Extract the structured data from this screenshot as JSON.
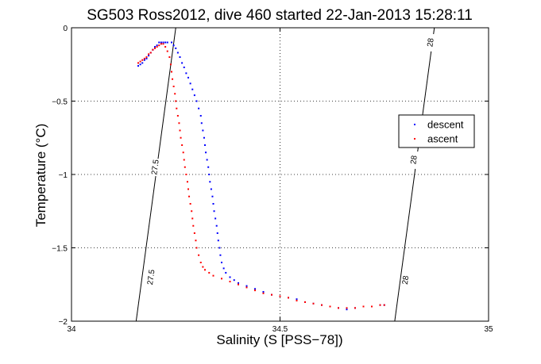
{
  "chart_data": {
    "type": "scatter",
    "title": "SG503 Ross2012, dive 460 started 22-Jan-2013 15:28:11",
    "xlabel": "Salinity (S [PSS−78])",
    "ylabel": "Temperature (°C)",
    "xlim": [
      34,
      35
    ],
    "ylim": [
      -2,
      0
    ],
    "xticks": [
      {
        "value": 34,
        "label": "34"
      },
      {
        "value": 34.5,
        "label": "34.5"
      },
      {
        "value": 35,
        "label": "35"
      }
    ],
    "yticks": [
      {
        "value": 0,
        "label": "0"
      },
      {
        "value": -0.5,
        "label": "−0.5"
      },
      {
        "value": -1,
        "label": "−1"
      },
      {
        "value": -1.5,
        "label": "−1.5"
      },
      {
        "value": -2,
        "label": "−2"
      }
    ],
    "grid": "dotted",
    "legend": {
      "position": "right",
      "entries": [
        "descent",
        "ascent"
      ]
    },
    "density_contours": [
      {
        "label": "27.5",
        "points": [
          [
            34.155,
            -2
          ],
          [
            34.25,
            0
          ]
        ],
        "label_positions": [
          [
            34.19,
            -1.7
          ],
          [
            34.2,
            -0.95
          ]
        ]
      },
      {
        "label": "28",
        "points": [
          [
            34.775,
            -2
          ],
          [
            34.87,
            0
          ]
        ],
        "label_positions": [
          [
            34.8,
            -1.72
          ],
          [
            34.82,
            -0.9
          ],
          [
            34.86,
            -0.1
          ]
        ]
      }
    ],
    "series": [
      {
        "name": "descent",
        "color": "#0000ff",
        "points": [
          [
            34.16,
            -0.26
          ],
          [
            34.165,
            -0.25
          ],
          [
            34.17,
            -0.24
          ],
          [
            34.175,
            -0.22
          ],
          [
            34.18,
            -0.21
          ],
          [
            34.185,
            -0.19
          ],
          [
            34.19,
            -0.17
          ],
          [
            34.195,
            -0.15
          ],
          [
            34.2,
            -0.13
          ],
          [
            34.205,
            -0.12
          ],
          [
            34.21,
            -0.1
          ],
          [
            34.215,
            -0.1
          ],
          [
            34.22,
            -0.1
          ],
          [
            34.225,
            -0.1
          ],
          [
            34.23,
            -0.1
          ],
          [
            34.24,
            -0.1
          ],
          [
            34.245,
            -0.12
          ],
          [
            34.25,
            -0.14
          ],
          [
            34.255,
            -0.17
          ],
          [
            34.26,
            -0.2
          ],
          [
            34.265,
            -0.24
          ],
          [
            34.27,
            -0.27
          ],
          [
            34.275,
            -0.31
          ],
          [
            34.28,
            -0.34
          ],
          [
            34.285,
            -0.38
          ],
          [
            34.29,
            -0.42
          ],
          [
            34.295,
            -0.46
          ],
          [
            34.3,
            -0.5
          ],
          [
            34.305,
            -0.55
          ],
          [
            34.31,
            -0.6
          ],
          [
            34.312,
            -0.65
          ],
          [
            34.315,
            -0.7
          ],
          [
            34.318,
            -0.75
          ],
          [
            34.32,
            -0.8
          ],
          [
            34.322,
            -0.85
          ],
          [
            34.325,
            -0.9
          ],
          [
            34.328,
            -0.95
          ],
          [
            34.33,
            -1
          ],
          [
            34.332,
            -1.05
          ],
          [
            34.335,
            -1.1
          ],
          [
            34.338,
            -1.15
          ],
          [
            34.34,
            -1.2
          ],
          [
            34.342,
            -1.25
          ],
          [
            34.345,
            -1.3
          ],
          [
            34.348,
            -1.35
          ],
          [
            34.35,
            -1.4
          ],
          [
            34.352,
            -1.45
          ],
          [
            34.355,
            -1.5
          ],
          [
            34.357,
            -1.55
          ],
          [
            34.36,
            -1.6
          ],
          [
            34.365,
            -1.64
          ],
          [
            34.37,
            -1.67
          ],
          [
            34.38,
            -1.7
          ],
          [
            34.39,
            -1.72
          ],
          [
            34.4,
            -1.74
          ],
          [
            34.42,
            -1.76
          ],
          [
            34.44,
            -1.78
          ],
          [
            34.46,
            -1.8
          ],
          [
            34.48,
            -1.82
          ],
          [
            34.5,
            -1.83
          ],
          [
            34.52,
            -1.84
          ],
          [
            34.54,
            -1.85
          ],
          [
            34.56,
            -1.87
          ],
          [
            34.58,
            -1.88
          ],
          [
            34.6,
            -1.89
          ],
          [
            34.62,
            -1.9
          ],
          [
            34.64,
            -1.91
          ],
          [
            34.66,
            -1.92
          ],
          [
            34.68,
            -1.91
          ],
          [
            34.7,
            -1.9
          ],
          [
            34.72,
            -1.9
          ],
          [
            34.74,
            -1.89
          ],
          [
            34.75,
            -1.89
          ]
        ]
      },
      {
        "name": "ascent",
        "color": "#ff0000",
        "points": [
          [
            34.16,
            -0.24
          ],
          [
            34.165,
            -0.23
          ],
          [
            34.17,
            -0.22
          ],
          [
            34.175,
            -0.21
          ],
          [
            34.18,
            -0.2
          ],
          [
            34.185,
            -0.18
          ],
          [
            34.19,
            -0.17
          ],
          [
            34.195,
            -0.15
          ],
          [
            34.2,
            -0.14
          ],
          [
            34.205,
            -0.13
          ],
          [
            34.21,
            -0.12
          ],
          [
            34.215,
            -0.11
          ],
          [
            34.22,
            -0.11
          ],
          [
            34.225,
            -0.13
          ],
          [
            34.23,
            -0.16
          ],
          [
            34.235,
            -0.2
          ],
          [
            34.238,
            -0.25
          ],
          [
            34.24,
            -0.3
          ],
          [
            34.242,
            -0.35
          ],
          [
            34.245,
            -0.4
          ],
          [
            34.248,
            -0.45
          ],
          [
            34.25,
            -0.5
          ],
          [
            34.252,
            -0.55
          ],
          [
            34.255,
            -0.6
          ],
          [
            34.258,
            -0.65
          ],
          [
            34.26,
            -0.7
          ],
          [
            34.262,
            -0.75
          ],
          [
            34.265,
            -0.8
          ],
          [
            34.268,
            -0.85
          ],
          [
            34.27,
            -0.9
          ],
          [
            34.272,
            -0.95
          ],
          [
            34.275,
            -1
          ],
          [
            34.278,
            -1.05
          ],
          [
            34.28,
            -1.1
          ],
          [
            34.282,
            -1.15
          ],
          [
            34.285,
            -1.2
          ],
          [
            34.288,
            -1.25
          ],
          [
            34.29,
            -1.3
          ],
          [
            34.292,
            -1.35
          ],
          [
            34.295,
            -1.4
          ],
          [
            34.298,
            -1.45
          ],
          [
            34.3,
            -1.5
          ],
          [
            34.305,
            -1.55
          ],
          [
            34.31,
            -1.6
          ],
          [
            34.315,
            -1.63
          ],
          [
            34.32,
            -1.65
          ],
          [
            34.33,
            -1.67
          ],
          [
            34.34,
            -1.69
          ],
          [
            34.36,
            -1.71
          ],
          [
            34.38,
            -1.73
          ],
          [
            34.4,
            -1.75
          ],
          [
            34.42,
            -1.77
          ],
          [
            34.44,
            -1.79
          ],
          [
            34.46,
            -1.81
          ],
          [
            34.48,
            -1.82
          ],
          [
            34.5,
            -1.83
          ],
          [
            34.52,
            -1.84
          ],
          [
            34.54,
            -1.86
          ],
          [
            34.56,
            -1.87
          ],
          [
            34.58,
            -1.88
          ],
          [
            34.6,
            -1.89
          ],
          [
            34.62,
            -1.9
          ],
          [
            34.64,
            -1.91
          ],
          [
            34.66,
            -1.91
          ],
          [
            34.68,
            -1.91
          ],
          [
            34.7,
            -1.9
          ],
          [
            34.72,
            -1.9
          ],
          [
            34.74,
            -1.89
          ],
          [
            34.75,
            -1.89
          ]
        ]
      }
    ]
  }
}
